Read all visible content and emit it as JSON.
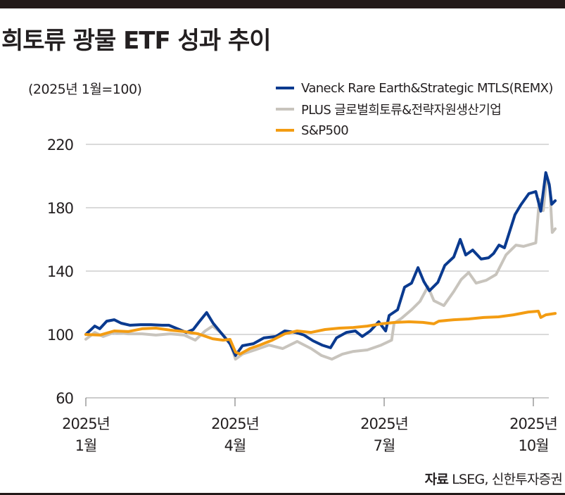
{
  "title": "희토류 광물 ETF 성과 추이",
  "unit_note": "(2025년 1월=100)",
  "source": {
    "label": "자료",
    "text": "LSEG, 신한투자증권"
  },
  "chart_data": {
    "type": "line",
    "title": "희토류 광물 ETF 성과 추이",
    "subtitle": "(2025년 1월=100)",
    "xlabel": "",
    "ylabel": "",
    "ylim": [
      60,
      220
    ],
    "yticks": [
      60,
      100,
      140,
      180,
      220
    ],
    "xlim_months": [
      0,
      9.5
    ],
    "xticks": [
      {
        "pos": 0,
        "line1": "2025년",
        "line2": "1월"
      },
      {
        "pos": 3,
        "line1": "2025년",
        "line2": "4월"
      },
      {
        "pos": 6,
        "line1": "2025년",
        "line2": "7월"
      },
      {
        "pos": 9,
        "line1": "2025년",
        "line2": "10월"
      }
    ],
    "grid": true,
    "legend_position": "top-right",
    "x_unit": "months since 2025-01-01",
    "series": [
      {
        "name": "Vaneck Rare Earth&Strategic MTLS(REMX)",
        "color": "#0a3a8f",
        "x": [
          0,
          0.18,
          0.28,
          0.42,
          0.57,
          0.71,
          0.89,
          1.1,
          1.31,
          1.53,
          1.67,
          1.88,
          2.02,
          2.16,
          2.28,
          2.43,
          2.56,
          2.77,
          2.9,
          3.01,
          3.15,
          3.37,
          3.58,
          3.82,
          4.0,
          4.22,
          4.39,
          4.57,
          4.75,
          4.92,
          5.04,
          5.24,
          5.42,
          5.56,
          5.72,
          5.89,
          6.03,
          6.1,
          6.27,
          6.41,
          6.55,
          6.68,
          6.8,
          6.91,
          7.08,
          7.22,
          7.4,
          7.53,
          7.64,
          7.78,
          7.95,
          8.1,
          8.2,
          8.31,
          8.42,
          8.63,
          8.75,
          8.91,
          9.05,
          9.15,
          9.25,
          9.32,
          9.37,
          9.44
        ],
        "values": [
          100,
          105.3,
          103.6,
          108.4,
          109.3,
          107.1,
          105.8,
          106.2,
          106.2,
          105.8,
          105.8,
          103.1,
          101.3,
          103.1,
          108,
          113.8,
          107.1,
          99.1,
          94.2,
          86.7,
          92.9,
          94.2,
          97.8,
          98.7,
          102.2,
          101.3,
          99.6,
          96,
          93.3,
          91.6,
          97.8,
          101.3,
          102.2,
          98.7,
          102.2,
          108,
          102.2,
          112,
          115.6,
          129.8,
          132.4,
          142.2,
          133.3,
          127.6,
          132.9,
          143.6,
          148.9,
          160,
          150.2,
          153.3,
          147.6,
          148.4,
          151.1,
          156.4,
          154.7,
          175.6,
          181.8,
          188.9,
          190.2,
          177.8,
          202.2,
          194.7,
          182.2,
          184.4
        ]
      },
      {
        "name": "PLUS 글로벌희토류&전략자원생산기업",
        "color": "#c8c4bd",
        "x": [
          0,
          0.18,
          0.35,
          0.57,
          0.85,
          1.13,
          1.41,
          1.7,
          1.98,
          2.2,
          2.4,
          2.55,
          2.76,
          2.92,
          3.01,
          3.15,
          3.4,
          3.68,
          3.96,
          4.25,
          4.53,
          4.74,
          4.95,
          5.16,
          5.38,
          5.66,
          5.94,
          6.15,
          6.2,
          6.35,
          6.55,
          6.72,
          6.88,
          7.0,
          7.2,
          7.4,
          7.55,
          7.7,
          7.85,
          8.05,
          8.25,
          8.45,
          8.65,
          8.8,
          9.05,
          9.12,
          9.2,
          9.27,
          9.33,
          9.38,
          9.44
        ],
        "values": [
          97,
          101.3,
          98.7,
          101.3,
          100.4,
          100.4,
          99.6,
          100.4,
          99.6,
          96.4,
          102.2,
          105.3,
          100,
          93.3,
          84.4,
          87.6,
          90.2,
          93.3,
          91.1,
          95.6,
          91.1,
          86.7,
          84.4,
          87.6,
          89.3,
          90.2,
          93.3,
          96.4,
          107.1,
          110.2,
          115.6,
          120.9,
          130.2,
          121.3,
          118.2,
          127.1,
          134.7,
          139.1,
          132.4,
          134.2,
          137.8,
          150.2,
          156.4,
          155.6,
          157.8,
          185.3,
          178.2,
          200,
          192.9,
          164.4,
          166.7
        ]
      },
      {
        "name": "S&P500",
        "color": "#f39c12",
        "x": [
          0,
          0.28,
          0.57,
          0.85,
          1.13,
          1.41,
          1.7,
          1.98,
          2.26,
          2.55,
          2.76,
          2.9,
          3.01,
          3.1,
          3.3,
          3.5,
          3.75,
          4.0,
          4.25,
          4.53,
          4.81,
          5.1,
          5.38,
          5.66,
          5.94,
          6.22,
          6.5,
          6.78,
          7.0,
          7.1,
          7.4,
          7.7,
          8.0,
          8.3,
          8.6,
          8.9,
          9.1,
          9.15,
          9.25,
          9.44
        ],
        "values": [
          100,
          99.6,
          102.2,
          101.8,
          103.6,
          104,
          102.7,
          101.8,
          100.4,
          97.3,
          96.4,
          96.9,
          88.9,
          87.6,
          91.1,
          93.3,
          96.4,
          100.4,
          102.2,
          101.3,
          103.1,
          104,
          104.4,
          105.3,
          106.7,
          107.6,
          108,
          107.6,
          106.7,
          108.4,
          109.3,
          109.8,
          110.7,
          111.1,
          112.4,
          114.2,
          114.7,
          110.7,
          112.4,
          113.3
        ]
      }
    ]
  }
}
